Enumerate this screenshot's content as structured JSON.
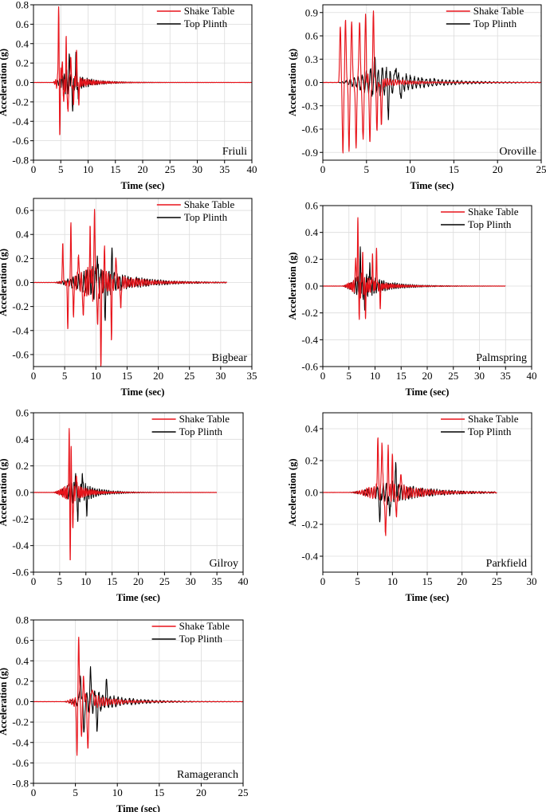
{
  "colors": {
    "shake": "#e8141b",
    "plinth": "#000000",
    "grid": "#dcdcdc"
  },
  "legend": {
    "shake_label": "Shake Table",
    "plinth_label": "Top Plinth"
  },
  "chart_data": [
    {
      "type": "line",
      "name": "Friuli",
      "xlabel": "Time (sec)",
      "ylabel": "Acceleration (g)",
      "xlim": [
        0,
        40
      ],
      "ylim": [
        -0.8,
        0.8
      ],
      "xticks": [
        "0",
        "5",
        "10",
        "15",
        "20",
        "25",
        "30",
        "35",
        "40"
      ],
      "yticks": [
        "-0.8",
        "-0.6",
        "-0.4",
        "-0.2",
        "0.0",
        "0.2",
        "0.4",
        "0.6",
        "0.8"
      ],
      "grid": true,
      "legend_position": "top-right",
      "series": [
        {
          "name": "Shake Table",
          "duration": 40,
          "onset": 3.5,
          "peak_time": 4.9,
          "rise": 1.2,
          "decay": 3.0,
          "amp": 0.15,
          "freq": 3.2,
          "spikes": [
            [
              4.6,
              0.8
            ],
            [
              4.8,
              -0.49
            ],
            [
              5.2,
              0.23
            ],
            [
              5.6,
              -0.2
            ],
            [
              6.0,
              0.37
            ],
            [
              6.3,
              -0.38
            ],
            [
              6.8,
              0.3
            ],
            [
              7.3,
              -0.25
            ],
            [
              7.9,
              0.28
            ],
            [
              8.3,
              -0.2
            ]
          ]
        },
        {
          "name": "Top Plinth",
          "duration": 40,
          "onset": 3.5,
          "peak_time": 6.2,
          "rise": 1.5,
          "decay": 3.0,
          "amp": 0.13,
          "freq": 2.4,
          "spikes": [
            [
              6.6,
              0.3
            ],
            [
              7.2,
              -0.28
            ],
            [
              7.8,
              0.27
            ],
            [
              8.2,
              -0.22
            ]
          ]
        }
      ]
    },
    {
      "type": "line",
      "name": "Oroville",
      "xlabel": "Time (sec)",
      "ylabel": "Acceleration (g)",
      "xlim": [
        0,
        25
      ],
      "ylim": [
        -1.0,
        1.0
      ],
      "xticks": [
        "0",
        "5",
        "10",
        "15",
        "20",
        "25"
      ],
      "yticks": [
        "-0.9",
        "-0.6",
        "-0.3",
        "0.0",
        "0.3",
        "0.6",
        "0.9"
      ],
      "grid": true,
      "legend_position": "top-right",
      "series": [
        {
          "name": "Shake Table",
          "duration": 25,
          "onset": 1.5,
          "peak_time": 4.5,
          "rise": 1.5,
          "decay": 3.2,
          "amp": 0.12,
          "freq": 3.5,
          "spikes": [
            [
              2.0,
              0.72
            ],
            [
              2.3,
              -0.92
            ],
            [
              2.6,
              0.81
            ],
            [
              3.0,
              -0.86
            ],
            [
              3.3,
              0.82
            ],
            [
              3.8,
              -0.85
            ],
            [
              4.2,
              0.85
            ],
            [
              4.6,
              -0.82
            ],
            [
              4.9,
              0.82
            ],
            [
              5.4,
              -0.78
            ],
            [
              5.8,
              0.87
            ],
            [
              6.2,
              -0.58
            ],
            [
              6.7,
              -0.5
            ]
          ]
        },
        {
          "name": "Top Plinth",
          "duration": 25,
          "onset": 1.5,
          "peak_time": 6.3,
          "rise": 2.5,
          "decay": 4.0,
          "amp": 0.22,
          "freq": 2.2,
          "spikes": [
            [
              6.0,
              0.3
            ],
            [
              7.5,
              -0.3
            ],
            [
              8.4,
              0.26
            ],
            [
              9.0,
              -0.22
            ]
          ]
        }
      ]
    },
    {
      "type": "line",
      "name": "Bigbear",
      "xlabel": "Time (sec)",
      "ylabel": "Acceleration (g)",
      "xlim": [
        0,
        35
      ],
      "ylim": [
        -0.7,
        0.7
      ],
      "xticks": [
        "0",
        "5",
        "10",
        "15",
        "20",
        "25",
        "30",
        "35"
      ],
      "yticks": [
        "-0.6",
        "-0.4",
        "-0.2",
        "0.0",
        "0.2",
        "0.4",
        "0.6"
      ],
      "grid": true,
      "legend_position": "top-right",
      "series": [
        {
          "name": "Shake Table",
          "duration": 31,
          "onset": 3.0,
          "peak_time": 9.5,
          "rise": 4.0,
          "decay": 4.5,
          "amp": 0.14,
          "freq": 3.0,
          "spikes": [
            [
              4.7,
              0.32
            ],
            [
              5.5,
              -0.37
            ],
            [
              6.0,
              0.46
            ],
            [
              6.4,
              -0.3
            ],
            [
              7.2,
              0.28
            ],
            [
              8.0,
              -0.35
            ],
            [
              9.1,
              0.42
            ],
            [
              9.8,
              0.67
            ],
            [
              10.3,
              -0.42
            ],
            [
              10.8,
              -0.65
            ],
            [
              11.4,
              0.25
            ],
            [
              12.5,
              -0.43
            ],
            [
              13.2,
              0.24
            ],
            [
              14.0,
              -0.25
            ]
          ]
        },
        {
          "name": "Top Plinth",
          "duration": 31,
          "onset": 3.0,
          "peak_time": 10.0,
          "rise": 4.5,
          "decay": 5.0,
          "amp": 0.14,
          "freq": 2.3,
          "spikes": [
            [
              10.2,
              0.26
            ],
            [
              11.5,
              -0.28
            ],
            [
              12.6,
              0.26
            ]
          ]
        }
      ]
    },
    {
      "type": "line",
      "name": "Palmspring",
      "xlabel": "Time (sec)",
      "ylabel": "Acceleration (g)",
      "xlim": [
        0,
        40
      ],
      "ylim": [
        -0.6,
        0.6
      ],
      "xticks": [
        "0",
        "5",
        "10",
        "15",
        "20",
        "25",
        "30",
        "35",
        "40"
      ],
      "yticks": [
        "-0.6",
        "-0.4",
        "-0.2",
        "0.0",
        "0.2",
        "0.4",
        "0.6"
      ],
      "grid": true,
      "legend_position": "top-right",
      "series": [
        {
          "name": "Shake Table",
          "duration": 35,
          "onset": 3.5,
          "peak_time": 7.0,
          "rise": 1.5,
          "decay": 3.5,
          "amp": 0.09,
          "freq": 3.2,
          "spikes": [
            [
              6.3,
              0.26
            ],
            [
              6.7,
              0.5
            ],
            [
              7.0,
              -0.21
            ],
            [
              7.6,
              0.25
            ],
            [
              8.2,
              -0.2
            ],
            [
              9.5,
              0.24
            ],
            [
              10.3,
              0.28
            ],
            [
              11.0,
              -0.15
            ]
          ]
        },
        {
          "name": "Top Plinth",
          "duration": 35,
          "onset": 3.5,
          "peak_time": 7.5,
          "rise": 1.8,
          "decay": 4.0,
          "amp": 0.1,
          "freq": 2.4,
          "spikes": [
            [
              7.2,
              0.25
            ],
            [
              8.0,
              -0.22
            ],
            [
              9.0,
              0.22
            ]
          ]
        }
      ]
    },
    {
      "type": "line",
      "name": "Gilroy",
      "xlabel": "Time (sec)",
      "ylabel": "Acceleration (g)",
      "xlim": [
        0,
        40
      ],
      "ylim": [
        -0.6,
        0.6
      ],
      "xticks": [
        "0",
        "5",
        "10",
        "15",
        "20",
        "25",
        "30",
        "35",
        "40"
      ],
      "yticks": [
        "-0.6",
        "-0.4",
        "-0.2",
        "0.0",
        "0.2",
        "0.4",
        "0.6"
      ],
      "grid": true,
      "legend_position": "top-right",
      "series": [
        {
          "name": "Shake Table",
          "duration": 35,
          "onset": 3.5,
          "peak_time": 7.0,
          "rise": 1.2,
          "decay": 2.8,
          "amp": 0.08,
          "freq": 3.3,
          "spikes": [
            [
              6.8,
              0.49
            ],
            [
              7.0,
              -0.48
            ],
            [
              7.2,
              0.29
            ],
            [
              7.5,
              -0.3
            ],
            [
              8.2,
              0.16
            ]
          ]
        },
        {
          "name": "Top Plinth",
          "duration": 35,
          "onset": 3.5,
          "peak_time": 8.2,
          "rise": 1.8,
          "decay": 3.2,
          "amp": 0.1,
          "freq": 2.3,
          "spikes": [
            [
              8.0,
              0.19
            ],
            [
              8.5,
              -0.2
            ],
            [
              9.3,
              0.18
            ],
            [
              10.2,
              -0.14
            ]
          ]
        }
      ]
    },
    {
      "type": "line",
      "name": "Parkfield",
      "xlabel": "Time (sec)",
      "ylabel": "Acceleration (g)",
      "xlim": [
        0,
        30
      ],
      "ylim": [
        -0.5,
        0.5
      ],
      "xticks": [
        "0",
        "5",
        "10",
        "15",
        "20",
        "25",
        "30"
      ],
      "yticks": [
        "-0.4",
        "-0.2",
        "0.0",
        "0.2",
        "0.4"
      ],
      "grid": true,
      "legend_position": "top-right",
      "series": [
        {
          "name": "Shake Table",
          "duration": 25,
          "onset": 3.5,
          "peak_time": 9.0,
          "rise": 2.5,
          "decay": 4.5,
          "amp": 0.07,
          "freq": 3.0,
          "spikes": [
            [
              7.9,
              0.36
            ],
            [
              8.5,
              0.35
            ],
            [
              9.0,
              -0.33
            ],
            [
              9.4,
              0.25
            ],
            [
              10.0,
              0.2
            ],
            [
              10.6,
              -0.17
            ],
            [
              11.2,
              0.15
            ]
          ]
        },
        {
          "name": "Top Plinth",
          "duration": 25,
          "onset": 3.5,
          "peak_time": 9.5,
          "rise": 3.0,
          "decay": 5.0,
          "amp": 0.07,
          "freq": 2.3,
          "spikes": [
            [
              8.2,
              -0.22
            ],
            [
              9.6,
              -0.2
            ],
            [
              10.5,
              0.16
            ]
          ]
        }
      ]
    },
    {
      "type": "line",
      "name": "Ramageranch",
      "xlabel": "Time (sec)",
      "ylabel": "Acceleration (g)",
      "xlim": [
        0,
        25
      ],
      "ylim": [
        -0.8,
        0.8
      ],
      "xticks": [
        "0",
        "5",
        "10",
        "15",
        "20",
        "25"
      ],
      "yticks": [
        "-0.8",
        "-0.6",
        "-0.4",
        "-0.2",
        "0.0",
        "0.2",
        "0.4",
        "0.6",
        "0.8"
      ],
      "grid": true,
      "legend_position": "top-right",
      "series": [
        {
          "name": "Shake Table",
          "duration": 25,
          "onset": 3.5,
          "peak_time": 5.8,
          "rise": 1.0,
          "decay": 2.8,
          "amp": 0.1,
          "freq": 3.3,
          "spikes": [
            [
              5.2,
              -0.5
            ],
            [
              5.4,
              0.65
            ],
            [
              5.7,
              -0.3
            ],
            [
              6.0,
              0.2
            ],
            [
              6.5,
              -0.52
            ],
            [
              7.0,
              0.18
            ]
          ]
        },
        {
          "name": "Top Plinth",
          "duration": 25,
          "onset": 3.5,
          "peak_time": 7.0,
          "rise": 1.8,
          "decay": 3.2,
          "amp": 0.12,
          "freq": 2.2,
          "spikes": [
            [
              5.6,
              0.3
            ],
            [
              6.0,
              -0.3
            ],
            [
              6.8,
              0.22
            ],
            [
              7.6,
              -0.2
            ],
            [
              8.7,
              0.18
            ]
          ]
        }
      ]
    }
  ]
}
